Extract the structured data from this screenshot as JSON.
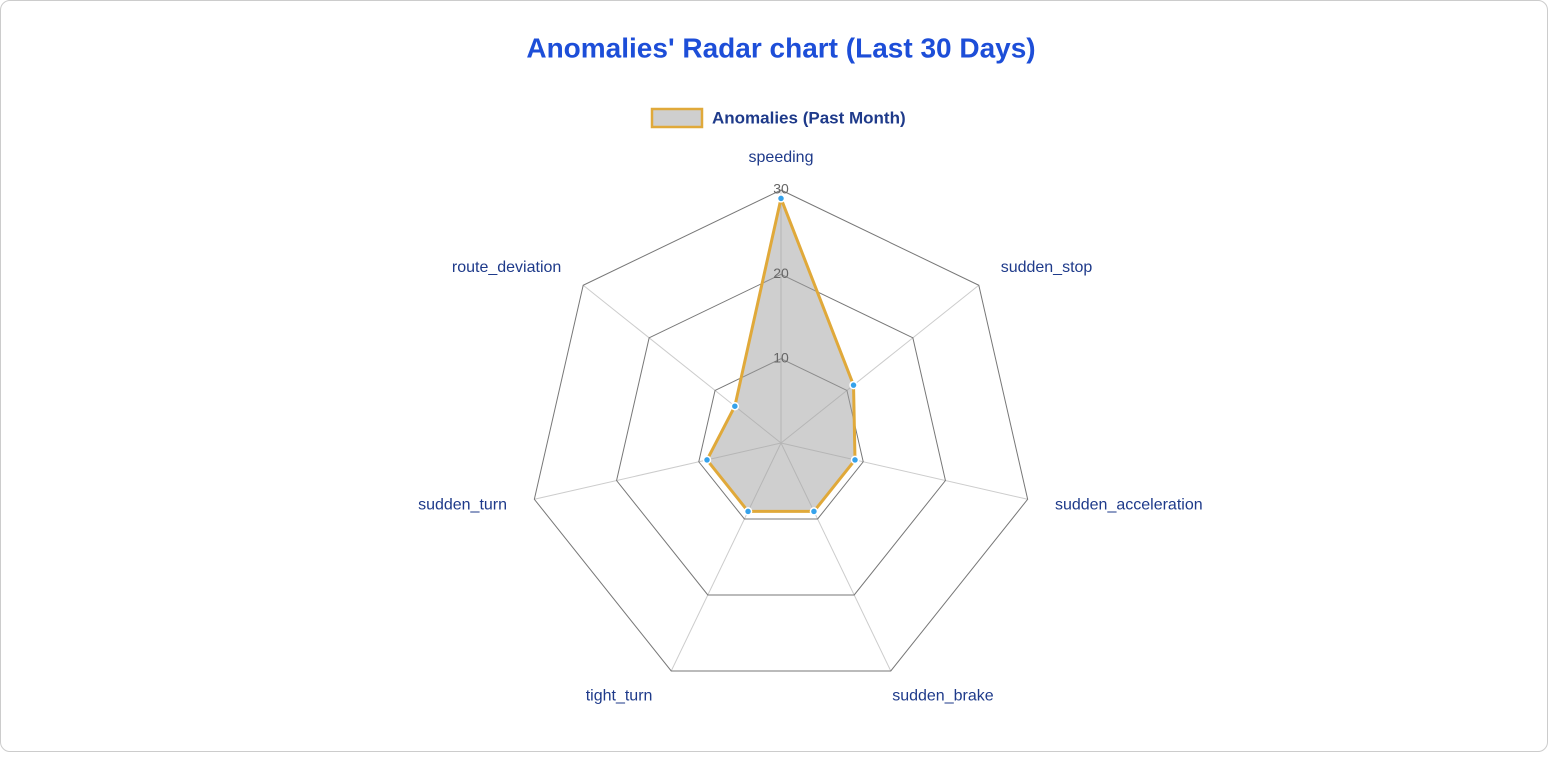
{
  "chart_data": {
    "type": "radar",
    "title": "Anomalies' Radar chart (Last 30 Days)",
    "categories": [
      "speeding",
      "sudden_stop",
      "sudden_acceleration",
      "sudden_brake",
      "tight_turn",
      "sudden_turn",
      "route_deviation"
    ],
    "series": [
      {
        "name": "Anomalies (Past Month)",
        "color": "#e0a93a",
        "fill": "rgba(160,160,160,0.5)",
        "point_color": "#36a2eb",
        "values": [
          29,
          11,
          9,
          9,
          9,
          9,
          7
        ]
      }
    ],
    "ylim": [
      0,
      30
    ],
    "yticks": [
      10,
      20,
      30
    ],
    "grid": true,
    "legend": "top"
  }
}
